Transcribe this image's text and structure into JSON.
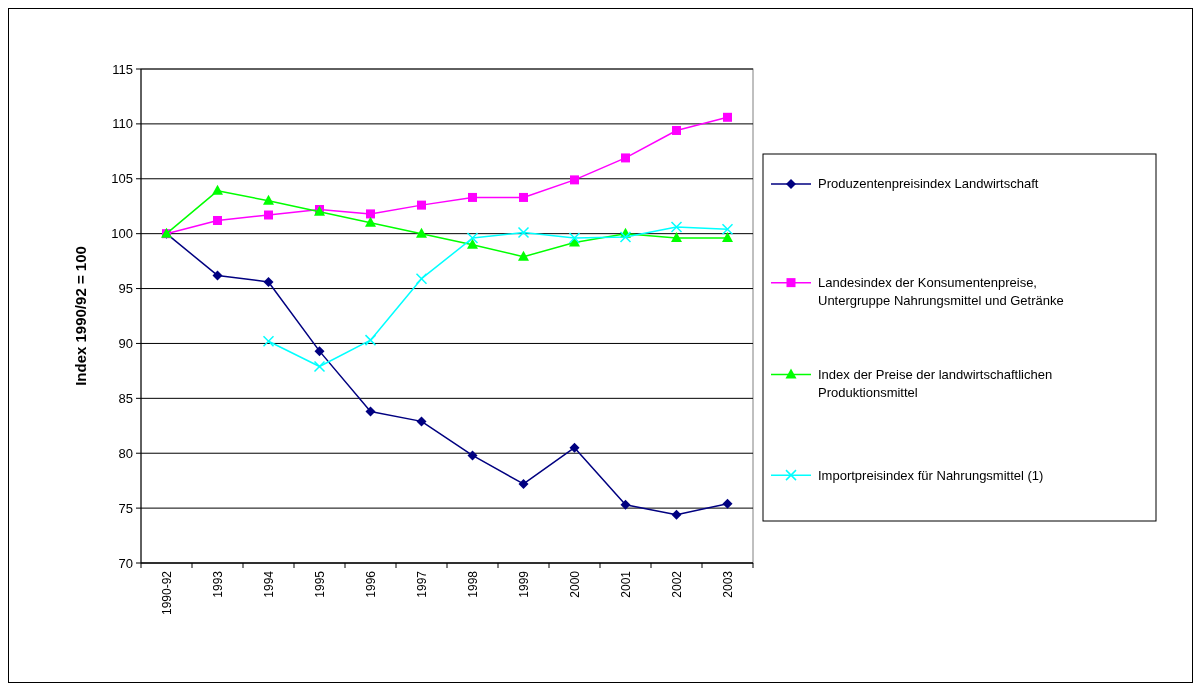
{
  "chart_data": {
    "type": "line",
    "ylabel": "Index 1990/92 = 100",
    "categories": [
      "1990-92",
      "1993",
      "1994",
      "1995",
      "1996",
      "1997",
      "1998",
      "1999",
      "2000",
      "2001",
      "2002",
      "2003"
    ],
    "ylim": [
      70,
      115
    ],
    "yticks": [
      70,
      75,
      80,
      85,
      90,
      95,
      100,
      105,
      110,
      115
    ],
    "grid": "y",
    "legend": "right",
    "series": [
      {
        "name": "Produzentenpreisindex Landwirtschaft",
        "color": "#000080",
        "marker": "diamond",
        "values": [
          100,
          96.2,
          95.6,
          89.3,
          83.8,
          82.9,
          79.8,
          77.2,
          80.5,
          75.3,
          74.4,
          75.4
        ]
      },
      {
        "name": "Landesindex der Konsumentenpreise, Untergruppe Nahrungsmittel und Getränke",
        "color": "#ff00ff",
        "marker": "square",
        "values": [
          100,
          101.2,
          101.7,
          102.2,
          101.8,
          102.6,
          103.3,
          103.3,
          104.9,
          106.9,
          109.4,
          110.6
        ]
      },
      {
        "name": "Index der Preise der landwirtschaftlichen Produktionsmittel",
        "color": "#00ff00",
        "marker": "triangle",
        "values": [
          100,
          103.9,
          103.0,
          102.0,
          101.0,
          100.0,
          99.0,
          97.9,
          99.2,
          100.0,
          99.6,
          99.6
        ]
      },
      {
        "name": "Importpreisindex für Nahrungsmittel (1)",
        "color": "#00ffff",
        "marker": "cross",
        "values": [
          null,
          null,
          90.2,
          87.9,
          90.3,
          95.9,
          99.6,
          100.1,
          99.6,
          99.7,
          100.6,
          100.4
        ]
      }
    ]
  }
}
